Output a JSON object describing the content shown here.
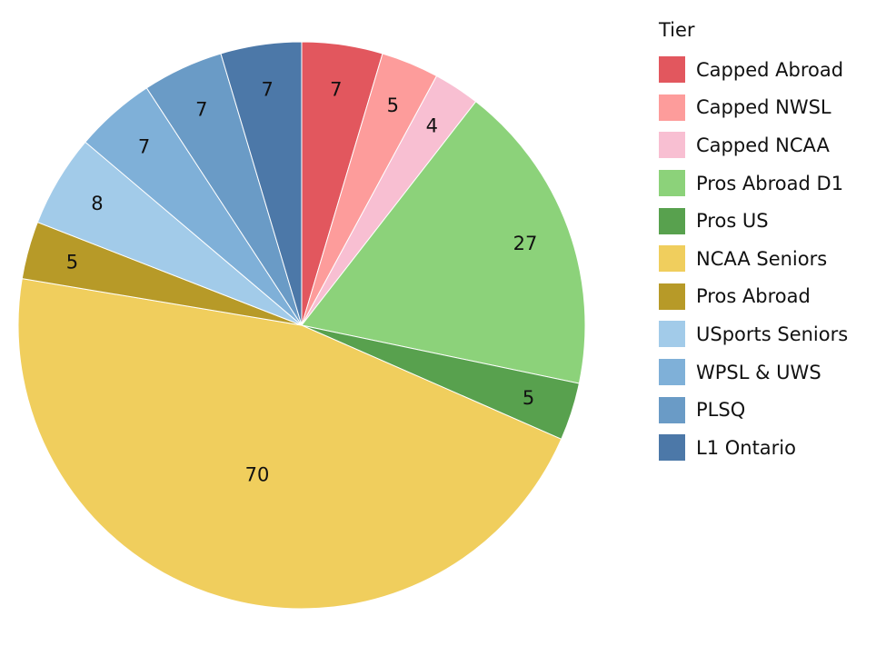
{
  "chart_data": {
    "type": "pie",
    "legend_title": "Tier",
    "legend_position": "right",
    "categories": [
      "Capped Abroad",
      "Capped NWSL",
      "Capped NCAA",
      "Pros Abroad D1",
      "Pros US",
      "NCAA Seniors",
      "Pros Abroad",
      "USports Seniors",
      "WPSL & UWS",
      "PLSQ",
      "L1 Ontario"
    ],
    "values": [
      7,
      5,
      4,
      27,
      5,
      70,
      5,
      8,
      7,
      7,
      7
    ],
    "colors": [
      "#e2575e",
      "#fd9c9b",
      "#f8bfd2",
      "#8cd27a",
      "#58a14e",
      "#f0ce5d",
      "#b79a28",
      "#a2cbe9",
      "#7fb0d8",
      "#6a9bc6",
      "#4c78a8"
    ]
  }
}
